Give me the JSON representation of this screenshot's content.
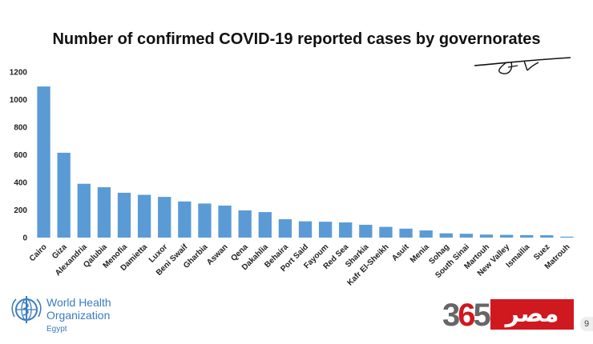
{
  "chart_data": {
    "type": "bar",
    "title": "Number of confirmed COVID-19 reported cases by governorates",
    "categories": [
      "Cairo",
      "Giza",
      "Alexandria",
      "Qalubia",
      "Menofia",
      "Damietta",
      "Luxor",
      "Beni Swaif",
      "Gharbia",
      "Aswan",
      "Qena",
      "Dakahlia",
      "Behaira",
      "Port Said",
      "Fayoum",
      "Red Sea",
      "Sharkia",
      "Kafr El-Sheikh",
      "Asuit",
      "Menia",
      "Sohag",
      "South Sinai",
      "Martouh",
      "New Valley",
      "Ismailia",
      "Suez",
      "Matrouh"
    ],
    "values": [
      1095,
      615,
      390,
      365,
      325,
      310,
      295,
      262,
      247,
      232,
      197,
      185,
      133,
      118,
      115,
      110,
      93,
      78,
      65,
      52,
      31,
      28,
      22,
      20,
      18,
      17,
      7
    ],
    "yticks": [
      "0",
      "200",
      "400",
      "600",
      "800",
      "1000",
      "1200"
    ],
    "ylim": [
      0,
      1200
    ],
    "xlabel": "",
    "ylabel": "",
    "grid": false,
    "legend": "none",
    "bar_color": "#5b9bd5"
  },
  "logos": {
    "who_name": "World Health Organization",
    "who_line1": "World Health",
    "who_line2": "Organization",
    "who_country": "Egypt",
    "brand_number": "365",
    "brand_text": "مصر"
  },
  "page_number": "9"
}
